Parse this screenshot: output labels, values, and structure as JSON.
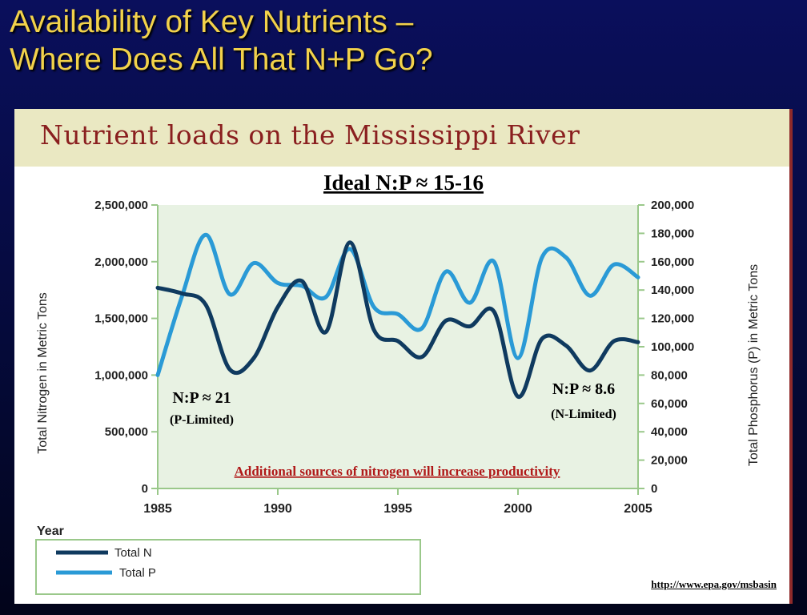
{
  "slide": {
    "title_line1": "Availability of Key Nutrients –",
    "title_line2": "Where Does All That N+P Go?",
    "source": "http://www.epa.gov/msbasin"
  },
  "figure": {
    "banner": "Nutrient loads on the Mississippi River"
  },
  "chart_data": {
    "type": "line",
    "title": "Ideal N:P ≈ 15-16",
    "xlabel": "Year",
    "ylabel": "Total Nitrogen in Metric Tons",
    "ylabel_right": "Total Phosphorus (P) in Metric Tons",
    "xlim": [
      1985,
      2005
    ],
    "ylim": [
      0,
      2500000
    ],
    "ylim_right": [
      0,
      200000
    ],
    "x_ticks": [
      1985,
      1990,
      1995,
      2000,
      2005
    ],
    "y_ticks": [
      "0",
      "500,000",
      "1,000,000",
      "1,500,000",
      "2,000,000",
      "2,500,000"
    ],
    "y_ticks_right": [
      "0",
      "20,000",
      "40,000",
      "60,000",
      "80,000",
      "100,000",
      "120,000",
      "140,000",
      "160,000",
      "180,000",
      "200,000"
    ],
    "grid": false,
    "legend_position": "bottom-left",
    "colors": {
      "total_n": "#0f3a5f",
      "total_p": "#2a9ad6",
      "plot_bg": "#e8f2e3",
      "axis": "#9ac88a",
      "annotation": "#b01818"
    },
    "series": [
      {
        "name": "Total N",
        "axis": "left",
        "x": [
          1985,
          1986,
          1987,
          1988,
          1989,
          1990,
          1991,
          1992,
          1993,
          1994,
          1995,
          1996,
          1997,
          1998,
          1999,
          2000,
          2001,
          2002,
          2003,
          2004,
          2005
        ],
        "values": [
          1770000,
          1720000,
          1620000,
          1050000,
          1150000,
          1600000,
          1830000,
          1380000,
          2170000,
          1400000,
          1300000,
          1160000,
          1480000,
          1430000,
          1560000,
          810000,
          1320000,
          1260000,
          1040000,
          1300000,
          1290000
        ]
      },
      {
        "name": "Total P",
        "axis": "right",
        "x": [
          1985,
          1986,
          1987,
          1988,
          1989,
          1990,
          1991,
          1992,
          1993,
          1994,
          1995,
          1996,
          1997,
          1998,
          1999,
          2000,
          2001,
          2002,
          2003,
          2004,
          2005
        ],
        "values": [
          80000,
          135000,
          179000,
          137000,
          159000,
          145000,
          143000,
          135000,
          169000,
          128000,
          123000,
          113000,
          153000,
          131000,
          160000,
          92000,
          163000,
          163000,
          136000,
          158000,
          149000
        ]
      }
    ],
    "annotations": [
      {
        "text": "N:P ≈ 21",
        "sub": "(P-Limited)",
        "near_year": 1986.5
      },
      {
        "text": "N:P ≈ 8.6",
        "sub": "(N-Limited)",
        "near_year": 2002.5
      },
      {
        "text": "Additional sources of nitrogen will increase productivity"
      }
    ]
  }
}
